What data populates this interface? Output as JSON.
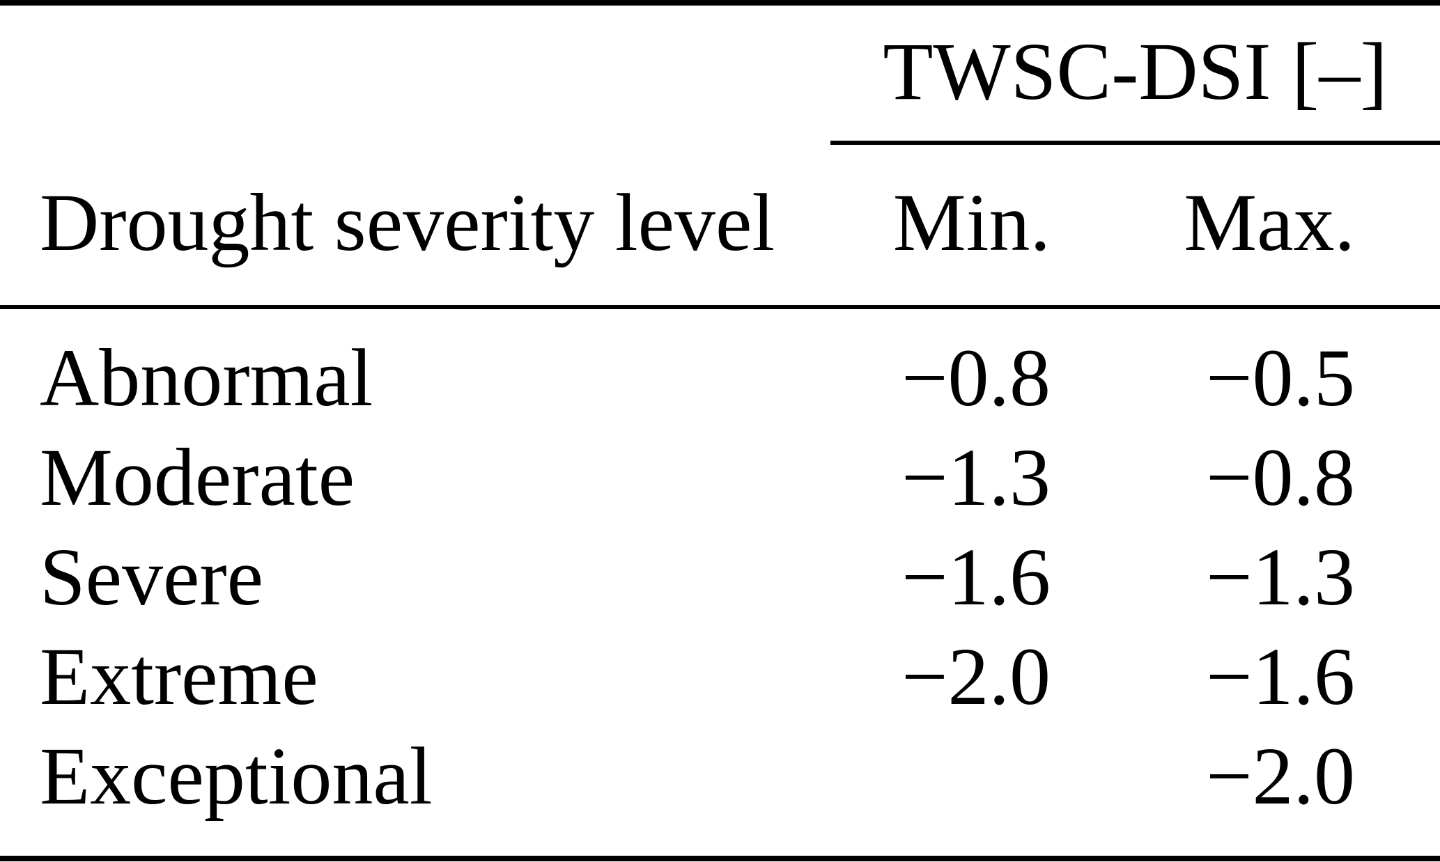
{
  "page": {
    "background_color": "#ffffff",
    "text_color": "#000000"
  },
  "table": {
    "column_group": {
      "label": "TWSC-DSI [–]"
    },
    "headers": {
      "level": "Drought severity level",
      "min": "Min.",
      "max": "Max."
    },
    "rows": [
      {
        "level": "Abnormal",
        "min": "−0.8",
        "max": "−0.5"
      },
      {
        "level": "Moderate",
        "min": "−1.3",
        "max": "−0.8"
      },
      {
        "level": "Severe",
        "min": "−1.6",
        "max": "−1.3"
      },
      {
        "level": "Extreme",
        "min": "−2.0",
        "max": "−1.6"
      },
      {
        "level": "Exceptional",
        "min": "",
        "max": "−2.0"
      }
    ]
  }
}
